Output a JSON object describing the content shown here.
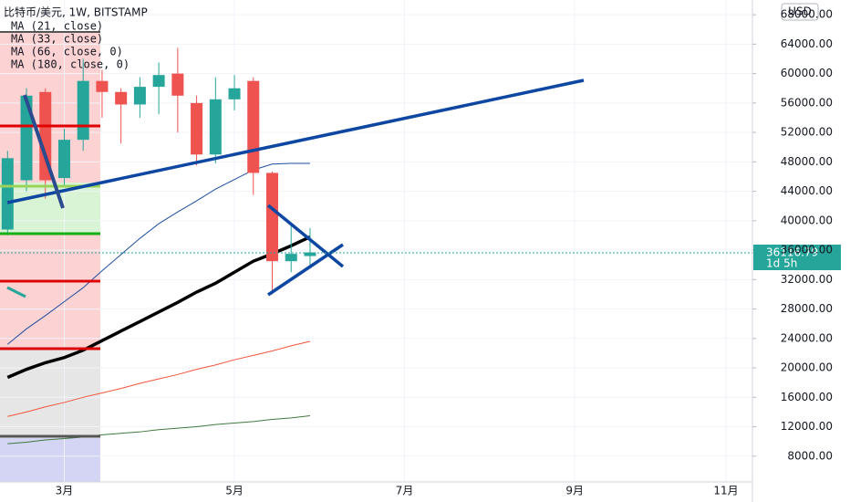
{
  "chart_data": {
    "type": "candlestick",
    "title": "比特币/美元, 1W, BITSTAMP",
    "currency_button": "USD",
    "x": [
      0,
      1,
      2,
      3,
      4,
      5,
      6,
      7,
      8,
      9,
      10,
      11,
      12,
      13,
      14,
      15,
      16
    ],
    "xlim": [
      -0.4,
      39.4
    ],
    "xticks": [
      {
        "value": 3,
        "label": "3月"
      },
      {
        "value": 12,
        "label": "5月"
      },
      {
        "value": 21,
        "label": "7月"
      },
      {
        "value": 30,
        "label": "9月"
      },
      {
        "value": 38,
        "label": "11月"
      }
    ],
    "ylim": [
      4500,
      70000
    ],
    "yticks": [
      {
        "value": 8000,
        "label": "8000.00"
      },
      {
        "value": 12000,
        "label": "12000.00"
      },
      {
        "value": 16000,
        "label": "16000.00"
      },
      {
        "value": 20000,
        "label": "20000.00"
      },
      {
        "value": 24000,
        "label": "24000.00"
      },
      {
        "value": 28000,
        "label": "28000.00"
      },
      {
        "value": 32000,
        "label": "32000.00"
      },
      {
        "value": 36000,
        "label": "36000.00"
      },
      {
        "value": 40000,
        "label": "40000.00"
      },
      {
        "value": 44000,
        "label": "44000.00"
      },
      {
        "value": 48000,
        "label": "48000.00"
      },
      {
        "value": 52000,
        "label": "52000.00"
      },
      {
        "value": 56000,
        "label": "56000.00"
      },
      {
        "value": 60000,
        "label": "60000.00"
      },
      {
        "value": 64000,
        "label": "64000.00"
      },
      {
        "value": 68000,
        "label": "68000.00"
      }
    ],
    "up_color": "#26a69a",
    "down_color": "#ef5350",
    "open": [
      38800,
      45500,
      57500,
      45800,
      51000,
      59000,
      57500,
      55800,
      58200,
      60000,
      56000,
      49000,
      56500,
      59000,
      46500,
      34500,
      35200
    ],
    "high": [
      49500,
      58000,
      58000,
      52500,
      62000,
      60500,
      58000,
      59500,
      61500,
      63500,
      57000,
      59500,
      59800,
      59500,
      46700,
      39500,
      39000
    ],
    "low": [
      38000,
      44000,
      43000,
      44500,
      49500,
      54000,
      50500,
      54000,
      54500,
      52000,
      47500,
      47800,
      55000,
      43500,
      30000,
      33000,
      34000
    ],
    "close": [
      48500,
      57000,
      45500,
      51000,
      59000,
      57500,
      55800,
      58200,
      59800,
      57000,
      49000,
      56500,
      58000,
      46500,
      34500,
      35500,
      35700
    ],
    "last_price": 36116.79,
    "countdown": "1d 5h",
    "series": [
      {
        "name": "MA (21, close)",
        "color": "#000000",
        "width": 3.5,
        "values": [
          18700,
          19800,
          20700,
          21400,
          22400,
          23700,
          25000,
          26300,
          27600,
          28900,
          30300,
          31500,
          33000,
          34500,
          35500,
          36600,
          37800
        ]
      },
      {
        "name": "MA (33, close)",
        "color": "#1e4fa0",
        "width": 1,
        "values": [
          23200,
          25300,
          27100,
          29000,
          30900,
          33200,
          35400,
          37600,
          39600,
          41200,
          42700,
          44300,
          45600,
          46900,
          47700,
          47800,
          47800
        ]
      },
      {
        "name": "MA (66, close, 0)",
        "color": "#f4543c",
        "width": 1,
        "values": [
          13400,
          14000,
          14700,
          15300,
          16000,
          16600,
          17200,
          17900,
          18500,
          19100,
          19800,
          20400,
          21100,
          21700,
          22300,
          23000,
          23600
        ]
      },
      {
        "name": "MA (180, close, 0)",
        "color": "#3f7a3f",
        "width": 1,
        "values": [
          9700,
          9900,
          10200,
          10400,
          10600,
          10900,
          11100,
          11300,
          11600,
          11800,
          12000,
          12300,
          12500,
          12700,
          13000,
          13200,
          13500
        ]
      }
    ]
  }
}
